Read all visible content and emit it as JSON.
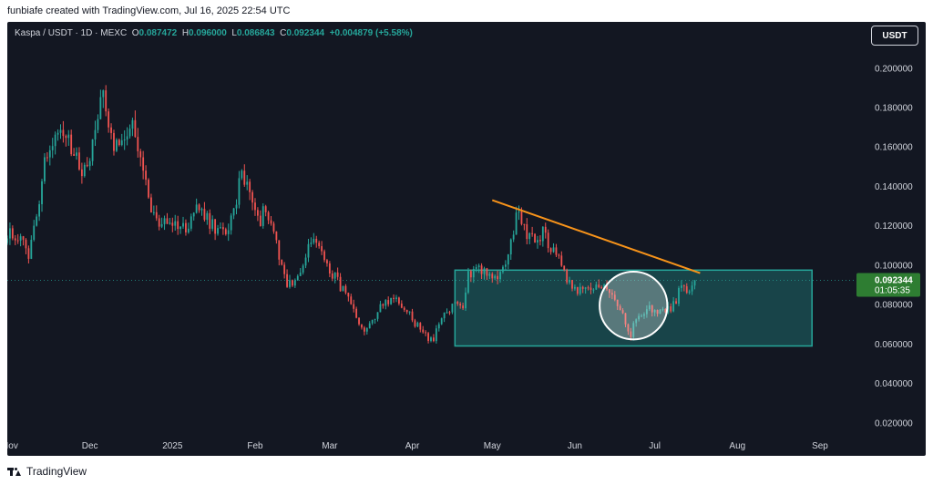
{
  "header": {
    "credit": "funbiafe created with TradingView.com, Jul 16, 2025 22:54 UTC"
  },
  "legend": {
    "symbol": "Kaspa / USDT · 1D · MEXC",
    "open_label": "O",
    "open": "0.087472",
    "high_label": "H",
    "high": "0.096000",
    "low_label": "L",
    "low": "0.086843",
    "close_label": "C",
    "close": "0.092344",
    "change": "+0.004879 (+5.58%)"
  },
  "currency_button": {
    "label": "USDT"
  },
  "price_tag": {
    "price": "0.092344",
    "countdown": "01:05:35"
  },
  "footer": {
    "brand": "TradingView"
  },
  "colors": {
    "background": "#131722",
    "up": "#26a69a",
    "down": "#ef5350",
    "trendline": "#f7931a",
    "zone_fill": "#26a69a",
    "circle_stroke": "#ffffff",
    "price_tag_bg": "#2e7d32",
    "axis_text": "#d1d4dc"
  },
  "chart_data": {
    "type": "candlestick",
    "symbol": "KAS/USDT",
    "interval": "1D",
    "exchange": "MEXC",
    "y_axis": {
      "ticks": [
        0.02,
        0.04,
        0.06,
        0.08,
        0.1,
        0.12,
        0.14,
        0.16,
        0.18,
        0.2
      ],
      "tick_labels": [
        "0.020000",
        "0.040000",
        "0.060000",
        "0.080000",
        "0.100000",
        "0.120000",
        "0.140000",
        "0.160000",
        "0.180000",
        "0.200000"
      ],
      "range": [
        0.0125,
        0.2235
      ]
    },
    "x_axis": {
      "range": [
        "2024-10-31",
        "2025-09-14"
      ],
      "ticks": [
        {
          "label": "Nov",
          "date": "2024-11-01"
        },
        {
          "label": "Dec",
          "date": "2024-12-01"
        },
        {
          "label": "2025",
          "date": "2025-01-01"
        },
        {
          "label": "Feb",
          "date": "2025-02-01"
        },
        {
          "label": "Mar",
          "date": "2025-03-01"
        },
        {
          "label": "Apr",
          "date": "2025-04-01"
        },
        {
          "label": "May",
          "date": "2025-05-01"
        },
        {
          "label": "Jun",
          "date": "2025-06-01"
        },
        {
          "label": "Jul",
          "date": "2025-07-01"
        },
        {
          "label": "Aug",
          "date": "2025-08-01"
        },
        {
          "label": "Sep",
          "date": "2025-09-01"
        }
      ]
    },
    "price_path": [
      {
        "date": "2024-10-31",
        "close": 0.117
      },
      {
        "date": "2024-11-05",
        "close": 0.113
      },
      {
        "date": "2024-11-08",
        "close": 0.105
      },
      {
        "date": "2024-11-11",
        "close": 0.125
      },
      {
        "date": "2024-11-14",
        "close": 0.155
      },
      {
        "date": "2024-11-18",
        "close": 0.165
      },
      {
        "date": "2024-11-20",
        "close": 0.172
      },
      {
        "date": "2024-11-24",
        "close": 0.158
      },
      {
        "date": "2024-11-28",
        "close": 0.148
      },
      {
        "date": "2024-12-02",
        "close": 0.16
      },
      {
        "date": "2024-12-04",
        "close": 0.178
      },
      {
        "date": "2024-12-06",
        "close": 0.185
      },
      {
        "date": "2024-12-08",
        "close": 0.175
      },
      {
        "date": "2024-12-10",
        "close": 0.16
      },
      {
        "date": "2024-12-14",
        "close": 0.168
      },
      {
        "date": "2024-12-17",
        "close": 0.17
      },
      {
        "date": "2024-12-20",
        "close": 0.152
      },
      {
        "date": "2024-12-24",
        "close": 0.128
      },
      {
        "date": "2024-12-28",
        "close": 0.12
      },
      {
        "date": "2025-01-02",
        "close": 0.122
      },
      {
        "date": "2025-01-06",
        "close": 0.118
      },
      {
        "date": "2025-01-10",
        "close": 0.13
      },
      {
        "date": "2025-01-14",
        "close": 0.123
      },
      {
        "date": "2025-01-18",
        "close": 0.117
      },
      {
        "date": "2025-01-22",
        "close": 0.118
      },
      {
        "date": "2025-01-25",
        "close": 0.132
      },
      {
        "date": "2025-01-27",
        "close": 0.15
      },
      {
        "date": "2025-01-29",
        "close": 0.14
      },
      {
        "date": "2025-02-01",
        "close": 0.13
      },
      {
        "date": "2025-02-03",
        "close": 0.123
      },
      {
        "date": "2025-02-05",
        "close": 0.13
      },
      {
        "date": "2025-02-08",
        "close": 0.118
      },
      {
        "date": "2025-02-10",
        "close": 0.106
      },
      {
        "date": "2025-02-13",
        "close": 0.09
      },
      {
        "date": "2025-02-16",
        "close": 0.092
      },
      {
        "date": "2025-02-19",
        "close": 0.1
      },
      {
        "date": "2025-02-22",
        "close": 0.112
      },
      {
        "date": "2025-02-25",
        "close": 0.11
      },
      {
        "date": "2025-02-28",
        "close": 0.1
      },
      {
        "date": "2025-03-03",
        "close": 0.094
      },
      {
        "date": "2025-03-06",
        "close": 0.087
      },
      {
        "date": "2025-03-09",
        "close": 0.08
      },
      {
        "date": "2025-03-12",
        "close": 0.068
      },
      {
        "date": "2025-03-14",
        "close": 0.065
      },
      {
        "date": "2025-03-16",
        "close": 0.072
      },
      {
        "date": "2025-03-19",
        "close": 0.076
      },
      {
        "date": "2025-03-22",
        "close": 0.082
      },
      {
        "date": "2025-03-26",
        "close": 0.083
      },
      {
        "date": "2025-03-29",
        "close": 0.079
      },
      {
        "date": "2025-04-01",
        "close": 0.072
      },
      {
        "date": "2025-04-04",
        "close": 0.068
      },
      {
        "date": "2025-04-07",
        "close": 0.063
      },
      {
        "date": "2025-04-09",
        "close": 0.062
      },
      {
        "date": "2025-04-11",
        "close": 0.07
      },
      {
        "date": "2025-04-14",
        "close": 0.076
      },
      {
        "date": "2025-04-17",
        "close": 0.08
      },
      {
        "date": "2025-04-20",
        "close": 0.08
      },
      {
        "date": "2025-04-22",
        "close": 0.095
      },
      {
        "date": "2025-04-25",
        "close": 0.1
      },
      {
        "date": "2025-04-28",
        "close": 0.097
      },
      {
        "date": "2025-05-01",
        "close": 0.093
      },
      {
        "date": "2025-05-04",
        "close": 0.095
      },
      {
        "date": "2025-05-06",
        "close": 0.102
      },
      {
        "date": "2025-05-08",
        "close": 0.11
      },
      {
        "date": "2025-05-10",
        "close": 0.127
      },
      {
        "date": "2025-05-12",
        "close": 0.124
      },
      {
        "date": "2025-05-15",
        "close": 0.113
      },
      {
        "date": "2025-05-18",
        "close": 0.112
      },
      {
        "date": "2025-05-20",
        "close": 0.117
      },
      {
        "date": "2025-05-23",
        "close": 0.109
      },
      {
        "date": "2025-05-27",
        "close": 0.101
      },
      {
        "date": "2025-05-30",
        "close": 0.09
      },
      {
        "date": "2025-06-02",
        "close": 0.087
      },
      {
        "date": "2025-06-05",
        "close": 0.088
      },
      {
        "date": "2025-06-08",
        "close": 0.087
      },
      {
        "date": "2025-06-11",
        "close": 0.09
      },
      {
        "date": "2025-06-14",
        "close": 0.085
      },
      {
        "date": "2025-06-17",
        "close": 0.079
      },
      {
        "date": "2025-06-20",
        "close": 0.071
      },
      {
        "date": "2025-06-22",
        "close": 0.065
      },
      {
        "date": "2025-06-24",
        "close": 0.074
      },
      {
        "date": "2025-06-27",
        "close": 0.077
      },
      {
        "date": "2025-06-30",
        "close": 0.078
      },
      {
        "date": "2025-07-03",
        "close": 0.076
      },
      {
        "date": "2025-07-06",
        "close": 0.077
      },
      {
        "date": "2025-07-09",
        "close": 0.082
      },
      {
        "date": "2025-07-11",
        "close": 0.09
      },
      {
        "date": "2025-07-13",
        "close": 0.086
      },
      {
        "date": "2025-07-15",
        "close": 0.0875
      },
      {
        "date": "2025-07-16",
        "close": 0.092344
      }
    ],
    "drawings": {
      "trendline": {
        "from": {
          "date": "2025-05-01",
          "price": 0.133
        },
        "to": {
          "date": "2025-07-18",
          "price": 0.096
        }
      },
      "range_zone": {
        "from_date": "2025-04-17",
        "to_date": "2025-08-29",
        "high": 0.0975,
        "low": 0.059
      },
      "circle": {
        "center_date": "2025-06-23",
        "center_price": 0.0795,
        "radius_days": 11,
        "radius_price": 0.0195
      }
    },
    "current_price_line": 0.092344
  }
}
